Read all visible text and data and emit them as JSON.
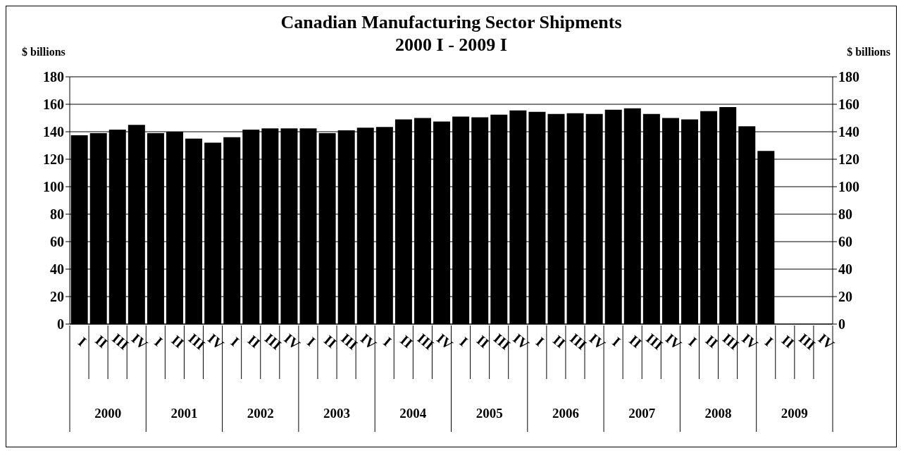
{
  "chart_data": {
    "type": "bar",
    "title": "Canadian Manufacturing Sector Shipments",
    "subtitle": "2000 I - 2009 I",
    "ylabel": "$ billions",
    "y2label": "$ billions",
    "categories": [
      "I",
      "II",
      "III",
      "IV",
      "I",
      "II",
      "III",
      "IV",
      "I",
      "II",
      "III",
      "IV",
      "I",
      "II",
      "III",
      "IV",
      "I",
      "II",
      "III",
      "IV",
      "I",
      "II",
      "III",
      "IV",
      "I",
      "II",
      "III",
      "IV",
      "I",
      "II",
      "III",
      "IV",
      "I",
      "II",
      "III",
      "IV",
      "I",
      "II",
      "III",
      "IV"
    ],
    "annotations": [
      "2000",
      "2001",
      "2002",
      "2003",
      "2004",
      "2005",
      "2006",
      "2007",
      "2008",
      "2009"
    ],
    "values": [
      137.5,
      139,
      141.5,
      145,
      139,
      140,
      135,
      132,
      136,
      141.5,
      142.5,
      142.5,
      142.5,
      139,
      141,
      143,
      143.5,
      149,
      150,
      147.5,
      151,
      150.5,
      152.5,
      155.5,
      154.5,
      153,
      153.5,
      153,
      156,
      157,
      153,
      150,
      149,
      155,
      158,
      144,
      126,
      null,
      null,
      null
    ],
    "color": "#000000",
    "ylim": [
      0,
      180
    ],
    "yticks": [
      0,
      20,
      40,
      60,
      80,
      100,
      120,
      140,
      160,
      180
    ],
    "y2lim": [
      0,
      180
    ],
    "y2ticks": [
      0,
      20,
      40,
      60,
      80,
      100,
      120,
      140,
      160,
      180
    ],
    "grid": "y"
  }
}
